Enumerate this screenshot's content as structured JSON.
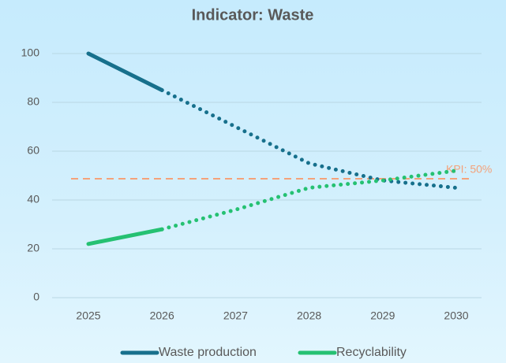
{
  "chart_data": {
    "type": "line",
    "title": "Indicator: Waste",
    "categories": [
      "2025",
      "2026",
      "2027",
      "2028",
      "2029",
      "2030"
    ],
    "series": [
      {
        "name": "Waste production",
        "color": "#17708c",
        "values": [
          100,
          85,
          70,
          55,
          48,
          45
        ],
        "dotted_from": 1
      },
      {
        "name": "Recyclability",
        "color": "#25c172",
        "values": [
          22,
          28,
          36,
          45,
          48,
          52
        ],
        "dotted_from": 1
      }
    ],
    "ylim": [
      0,
      100
    ],
    "yticks": [
      0,
      20,
      40,
      60,
      80,
      100
    ],
    "grid": true,
    "legend": "bottom",
    "kpi": {
      "value": 48.7,
      "label": "KPI: 50%",
      "color": "#f4a27a"
    }
  }
}
